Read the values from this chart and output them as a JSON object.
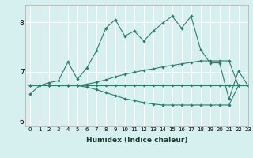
{
  "xlabel": "Humidex (Indice chaleur)",
  "bg_color": "#d6f0f0",
  "line_color": "#2e7d6e",
  "grid_color": "#ffffff",
  "xlim": [
    -0.5,
    23
  ],
  "ylim": [
    5.9,
    8.35
  ],
  "yticks": [
    6,
    7,
    8
  ],
  "xticks": [
    0,
    1,
    2,
    3,
    4,
    5,
    6,
    7,
    8,
    9,
    10,
    11,
    12,
    13,
    14,
    15,
    16,
    17,
    18,
    19,
    20,
    21,
    22,
    23
  ],
  "series": [
    [
      6.55,
      6.72,
      6.78,
      6.82,
      7.2,
      6.85,
      7.08,
      7.42,
      7.88,
      8.05,
      7.72,
      7.82,
      7.62,
      7.82,
      7.98,
      8.12,
      7.88,
      8.12,
      7.45,
      7.18,
      7.18,
      6.45,
      7.02,
      6.72
    ],
    [
      6.72,
      6.72,
      6.72,
      6.72,
      6.72,
      6.72,
      6.72,
      6.72,
      6.72,
      6.72,
      6.72,
      6.72,
      6.72,
      6.72,
      6.72,
      6.72,
      6.72,
      6.72,
      6.72,
      6.72,
      6.72,
      6.72,
      6.72,
      6.72
    ],
    [
      6.72,
      6.72,
      6.72,
      6.72,
      6.72,
      6.72,
      6.75,
      6.79,
      6.84,
      6.9,
      6.95,
      6.99,
      7.03,
      7.06,
      7.1,
      7.13,
      7.16,
      7.19,
      7.22,
      7.22,
      7.22,
      7.22,
      6.72,
      6.72
    ],
    [
      6.72,
      6.72,
      6.72,
      6.72,
      6.72,
      6.72,
      6.69,
      6.64,
      6.58,
      6.52,
      6.46,
      6.42,
      6.38,
      6.35,
      6.33,
      6.33,
      6.33,
      6.33,
      6.33,
      6.33,
      6.33,
      6.33,
      6.72,
      6.72
    ]
  ]
}
